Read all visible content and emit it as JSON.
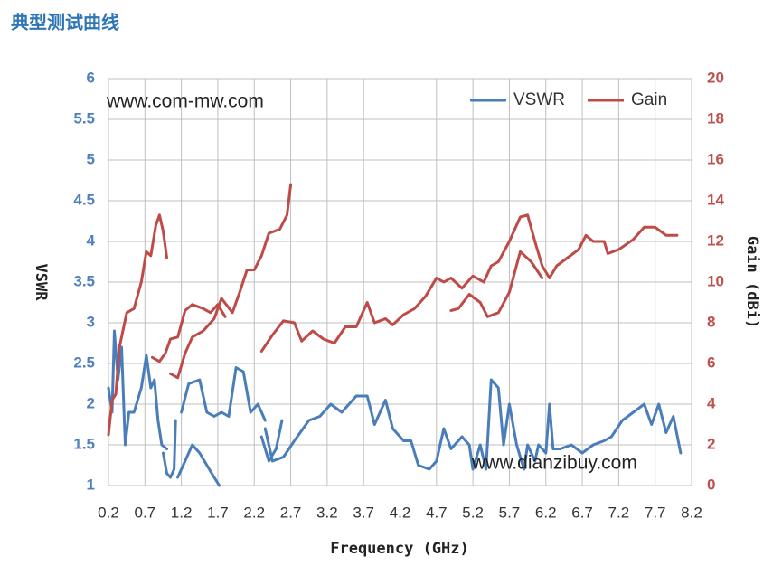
{
  "chart_data": {
    "type": "line",
    "title": "典型测试曲线",
    "xlabel": "Frequency (GHz)",
    "ylabel": "VSWR",
    "y2label": "Gain (dBi)",
    "annotations": [
      "www.com-mw.com",
      "www.dianzibuy.com"
    ],
    "xlim": [
      0.2,
      8.2
    ],
    "xticks": [
      0.2,
      0.7,
      1.2,
      1.7,
      2.2,
      2.7,
      3.2,
      3.7,
      4.2,
      4.7,
      5.2,
      5.7,
      6.2,
      6.7,
      7.2,
      7.7,
      8.2
    ],
    "ylim": [
      1,
      6
    ],
    "yticks": [
      1,
      1.5,
      2,
      2.5,
      3,
      3.5,
      4,
      4.5,
      5,
      5.5,
      6
    ],
    "y2lim": [
      0,
      20
    ],
    "y2ticks": [
      0,
      2,
      4,
      6,
      8,
      10,
      12,
      14,
      16,
      18,
      20
    ],
    "grid": true,
    "legend": "top-right",
    "series": [
      {
        "name": "VSWR",
        "color": "#4a7ebb",
        "x": [
          0.2,
          0.25,
          0.28,
          0.33,
          0.38,
          0.43,
          0.48,
          0.55,
          0.65,
          0.72,
          0.78,
          0.83,
          0.88,
          0.93,
          1.0,
          null,
          0.95,
          1.0,
          1.05,
          1.1,
          1.12,
          null,
          1.15,
          1.25,
          1.35,
          1.45,
          1.55,
          1.65,
          1.72,
          null,
          1.2,
          1.3,
          1.45,
          1.55,
          1.65,
          1.75,
          1.85,
          1.95,
          2.05,
          2.15,
          2.25,
          2.35,
          null,
          2.3,
          2.4,
          2.5,
          2.58,
          null,
          2.35,
          2.45,
          2.6,
          2.75,
          2.95,
          3.1,
          3.25,
          3.4,
          3.6,
          3.75,
          3.85,
          4.0,
          4.1,
          4.25,
          4.35,
          4.45,
          4.6,
          4.7,
          4.8,
          4.9,
          5.05,
          5.15,
          5.2,
          5.3,
          5.38,
          5.45,
          5.55,
          5.62,
          5.7,
          5.8,
          5.9,
          5.95,
          6.05,
          6.1,
          6.2,
          6.25,
          6.3,
          6.4,
          6.55,
          6.7,
          6.85,
          7.0,
          7.1,
          7.25,
          7.4,
          7.55,
          7.65,
          7.75,
          7.85,
          7.95,
          8.05
        ],
        "values": [
          2.2,
          1.9,
          2.9,
          2.3,
          2.7,
          1.5,
          1.9,
          1.9,
          2.2,
          2.6,
          2.2,
          2.3,
          1.8,
          1.5,
          1.45,
          null,
          1.4,
          1.15,
          1.1,
          1.2,
          1.8,
          null,
          1.1,
          1.3,
          1.5,
          1.4,
          1.25,
          1.1,
          1.0,
          null,
          1.9,
          2.25,
          2.3,
          1.9,
          1.85,
          1.9,
          1.85,
          2.45,
          2.4,
          1.9,
          2.0,
          1.8,
          null,
          1.6,
          1.3,
          1.45,
          1.8,
          null,
          1.7,
          1.3,
          1.35,
          1.55,
          1.8,
          1.85,
          2.0,
          1.9,
          2.1,
          2.1,
          1.75,
          2.05,
          1.7,
          1.55,
          1.55,
          1.25,
          1.2,
          1.3,
          1.7,
          1.45,
          1.6,
          1.5,
          1.2,
          1.5,
          1.2,
          2.3,
          2.2,
          1.5,
          2.0,
          1.5,
          1.2,
          1.5,
          1.3,
          1.5,
          1.4,
          2.0,
          1.45,
          1.45,
          1.5,
          1.4,
          1.5,
          1.55,
          1.6,
          1.8,
          1.9,
          2.0,
          1.75,
          2.0,
          1.65,
          1.85,
          1.4
        ]
      },
      {
        "name": "Gain",
        "color": "#be4b48",
        "axis": "y2",
        "x": [
          0.2,
          0.25,
          0.3,
          0.35,
          0.45,
          0.55,
          0.65,
          0.72,
          0.78,
          0.85,
          0.9,
          0.95,
          1.0,
          null,
          0.8,
          0.9,
          0.98,
          1.05,
          1.15,
          1.25,
          1.35,
          1.5,
          1.6,
          1.7,
          1.8,
          null,
          1.05,
          1.15,
          1.25,
          1.35,
          1.5,
          1.65,
          1.75,
          1.9,
          2.0,
          2.1,
          2.2,
          2.3,
          2.4,
          2.55,
          2.65,
          2.7,
          null,
          2.3,
          2.45,
          2.6,
          2.75,
          2.85,
          3.0,
          3.15,
          3.3,
          3.45,
          3.6,
          3.75,
          3.85,
          4.0,
          4.1,
          4.25,
          4.4,
          4.55,
          4.7,
          4.8,
          4.9,
          5.05,
          5.2,
          5.35,
          5.45,
          5.55,
          5.7,
          5.85,
          5.95,
          6.05,
          6.15,
          6.25,
          6.35,
          6.5,
          6.65,
          6.75,
          6.85,
          7.0,
          7.05,
          7.2,
          7.4,
          7.55,
          7.7,
          7.85,
          8.0,
          null,
          4.9,
          5.0,
          5.15,
          5.3,
          5.4,
          5.55,
          5.7,
          5.85,
          6.0,
          6.15
        ],
        "values": [
          2.5,
          4.2,
          4.5,
          6.8,
          8.5,
          8.7,
          10,
          11.5,
          11.3,
          12.8,
          13.3,
          12.5,
          11.2,
          null,
          6.3,
          6.1,
          6.5,
          7.2,
          7.3,
          8.6,
          8.9,
          8.7,
          8.5,
          8.9,
          8.3,
          null,
          5.5,
          5.3,
          6.5,
          7.3,
          7.6,
          8.2,
          9.2,
          8.5,
          9.5,
          10.6,
          10.6,
          11.3,
          12.4,
          12.6,
          13.3,
          14.8,
          null,
          6.6,
          7.4,
          8.1,
          8.0,
          7.1,
          7.6,
          7.2,
          7.0,
          7.8,
          7.8,
          9.0,
          8.0,
          8.2,
          7.9,
          8.4,
          8.7,
          9.3,
          10.2,
          10.0,
          10.2,
          9.7,
          10.3,
          10.0,
          10.8,
          11.0,
          12.0,
          13.2,
          13.3,
          12.0,
          10.8,
          10.2,
          10.8,
          11.2,
          11.6,
          12.3,
          12.0,
          12.0,
          11.4,
          11.6,
          12.1,
          12.7,
          12.7,
          12.3,
          12.3,
          null,
          8.6,
          8.7,
          9.4,
          9.0,
          8.3,
          8.5,
          9.5,
          11.5,
          11.0,
          10.2
        ]
      }
    ]
  }
}
